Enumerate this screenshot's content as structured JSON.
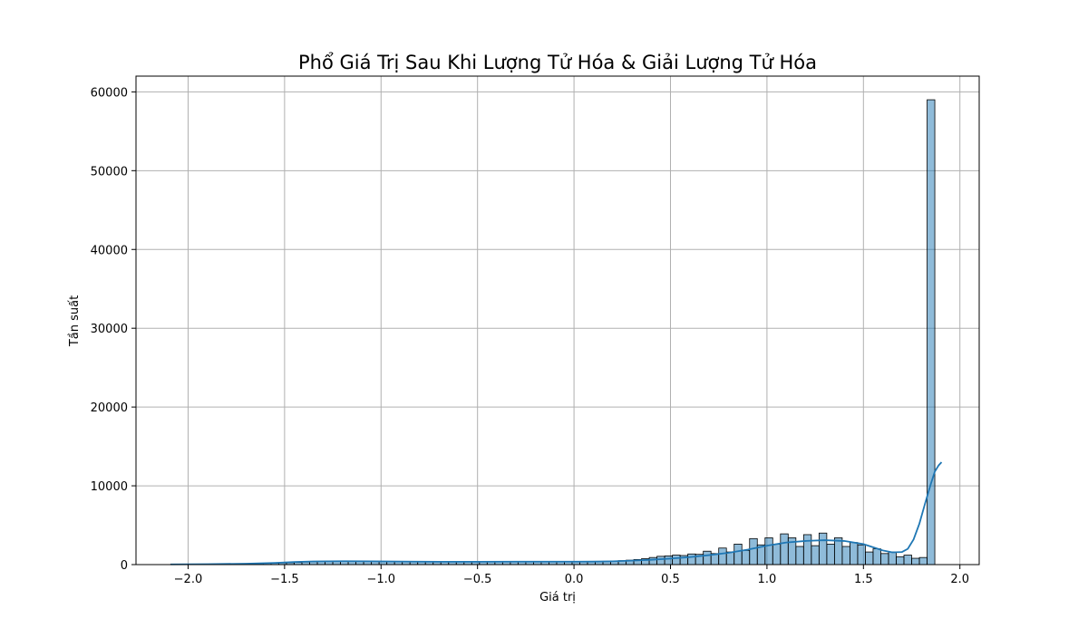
{
  "chart_data": {
    "type": "histogram",
    "title": "Phổ Giá Trị Sau Khi Lượng Tử Hóa & Giải Lượng Tử Hóa",
    "xlabel": "Giá trị",
    "ylabel": "Tần suất",
    "xlim": [
      -2.27,
      2.1
    ],
    "ylim": [
      0,
      62000
    ],
    "x_ticks": [
      -2.0,
      -1.5,
      -1.0,
      -0.5,
      0.0,
      0.5,
      1.0,
      1.5,
      2.0
    ],
    "x_tick_labels": [
      "−2.0",
      "−1.5",
      "−1.0",
      "−0.5",
      "0.0",
      "0.5",
      "1.0",
      "1.5",
      "2.0"
    ],
    "y_ticks": [
      0,
      10000,
      20000,
      30000,
      40000,
      50000,
      60000
    ],
    "y_tick_labels": [
      "0",
      "10000",
      "20000",
      "30000",
      "40000",
      "50000",
      "60000"
    ],
    "grid": true,
    "bin_start": -2.09,
    "bin_width": 0.04,
    "bin_counts": [
      60,
      60,
      60,
      60,
      60,
      70,
      70,
      80,
      90,
      110,
      130,
      150,
      170,
      190,
      210,
      240,
      280,
      320,
      370,
      400,
      420,
      430,
      440,
      440,
      440,
      430,
      420,
      410,
      400,
      390,
      380,
      370,
      360,
      350,
      350,
      350,
      350,
      350,
      350,
      360,
      360,
      360,
      360,
      360,
      370,
      370,
      370,
      370,
      370,
      370,
      370,
      370,
      370,
      370,
      380,
      400,
      420,
      460,
      500,
      560,
      640,
      750,
      900,
      1050,
      1100,
      1200,
      1150,
      1350,
      1300,
      1700,
      1400,
      2100,
      1600,
      2600,
      1800,
      3300,
      2500,
      3400,
      2600,
      3900,
      3400,
      2300,
      3800,
      2400,
      4000,
      2600,
      3400,
      2300,
      2800,
      2500,
      1600,
      2000,
      1400,
      1600,
      1000,
      1200,
      800,
      900,
      59000
    ],
    "kde": {
      "x": [
        -2.09,
        -1.9,
        -1.7,
        -1.55,
        -1.45,
        -1.35,
        -1.2,
        -1.05,
        -0.9,
        -0.7,
        -0.5,
        -0.3,
        -0.1,
        0.1,
        0.2,
        0.3,
        0.4,
        0.5,
        0.6,
        0.7,
        0.8,
        0.9,
        1.0,
        1.1,
        1.2,
        1.3,
        1.4,
        1.5,
        1.55,
        1.6,
        1.65,
        1.7,
        1.73,
        1.76,
        1.79,
        1.82,
        1.85,
        1.87,
        1.89,
        1.905
      ],
      "y": [
        30,
        60,
        110,
        220,
        330,
        400,
        430,
        420,
        390,
        360,
        360,
        370,
        370,
        380,
        420,
        500,
        610,
        760,
        950,
        1200,
        1500,
        1900,
        2400,
        2800,
        3000,
        3100,
        3000,
        2600,
        2200,
        1800,
        1550,
        1600,
        2000,
        3200,
        5200,
        7800,
        10300,
        11800,
        12600,
        13000
      ]
    },
    "bar_color": "#1f77b4",
    "bar_opacity": 0.5,
    "line_color": "#1f77b4"
  }
}
